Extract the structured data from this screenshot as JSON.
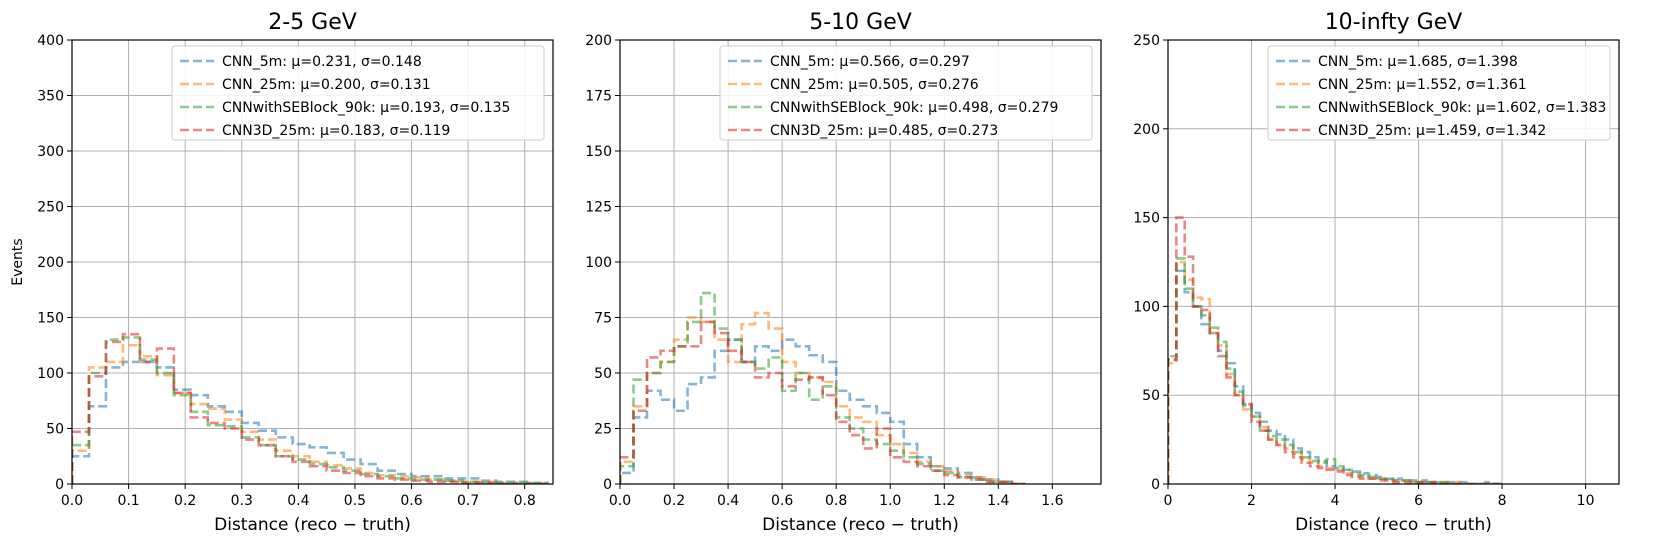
{
  "figure": {
    "ylabel": "Events",
    "xlabel": "Distance (reco − truth)"
  },
  "colors": {
    "CNN_5m": "#1f77b4",
    "CNN_25m": "#ff7f0e",
    "CNNwithSEBlock_90k": "#2ca02c",
    "CNN3D_25m": "#d62728"
  },
  "chart_data": [
    {
      "type": "histogram",
      "title": "2-5 GeV",
      "xlabel": "Distance (reco − truth)",
      "ylabel": "Events",
      "xlim": [
        0,
        0.85
      ],
      "ylim": [
        0,
        400
      ],
      "xticks": [
        0.0,
        0.1,
        0.2,
        0.3,
        0.4,
        0.5,
        0.6,
        0.7,
        0.8
      ],
      "xtick_labels": [
        "0.0",
        "0.1",
        "0.2",
        "0.3",
        "0.4",
        "0.5",
        "0.6",
        "0.7",
        "0.8"
      ],
      "yticks": [
        0,
        50,
        100,
        150,
        200,
        250,
        300,
        350,
        400
      ],
      "ytick_labels": [
        "0",
        "50",
        "100",
        "150",
        "200",
        "250",
        "300",
        "350",
        "400"
      ],
      "grid": true,
      "legend_position": "top-right",
      "bin_edges": [
        0.0,
        0.03,
        0.06,
        0.09,
        0.12,
        0.15,
        0.18,
        0.21,
        0.24,
        0.27,
        0.3,
        0.33,
        0.36,
        0.39,
        0.42,
        0.45,
        0.48,
        0.51,
        0.54,
        0.57,
        0.6,
        0.63,
        0.66,
        0.69,
        0.72,
        0.75,
        0.78,
        0.81,
        0.84
      ],
      "series": [
        {
          "name": "CNN_5m",
          "label": "CNN_5m: μ=0.231, σ=0.148",
          "values": [
            25,
            70,
            105,
            110,
            110,
            105,
            85,
            80,
            70,
            65,
            55,
            48,
            42,
            36,
            33,
            28,
            22,
            18,
            12,
            9,
            7,
            7,
            5,
            5,
            3,
            2,
            2,
            1
          ]
        },
        {
          "name": "CNN_25m",
          "label": "CNN_25m: μ=0.200, σ=0.131",
          "values": [
            30,
            105,
            110,
            125,
            115,
            98,
            82,
            72,
            68,
            58,
            47,
            40,
            30,
            25,
            20,
            17,
            14,
            10,
            8,
            7,
            6,
            4,
            3,
            2,
            2,
            1,
            1,
            0
          ]
        },
        {
          "name": "CNNwithSEBlock_90k",
          "label": "CNNwithSEBlock_90k: μ=0.193, σ=0.135",
          "values": [
            35,
            100,
            130,
            132,
            112,
            100,
            80,
            65,
            53,
            52,
            42,
            35,
            25,
            22,
            18,
            15,
            12,
            9,
            7,
            5,
            4,
            4,
            3,
            2,
            1,
            1,
            1,
            1
          ]
        },
        {
          "name": "CNN3D_25m",
          "label": "CNN3D_25m: μ=0.183, σ=0.119",
          "values": [
            47,
            97,
            128,
            135,
            110,
            122,
            82,
            60,
            55,
            50,
            40,
            35,
            25,
            20,
            16,
            12,
            10,
            7,
            5,
            4,
            3,
            2,
            2,
            1,
            1,
            0,
            0,
            0
          ]
        }
      ]
    },
    {
      "type": "histogram",
      "title": "5-10 GeV",
      "xlabel": "Distance (reco − truth)",
      "ylabel": "",
      "xlim": [
        0,
        1.78
      ],
      "ylim": [
        0,
        200
      ],
      "xticks": [
        0.0,
        0.2,
        0.4,
        0.6,
        0.8,
        1.0,
        1.2,
        1.4,
        1.6
      ],
      "xtick_labels": [
        "0.0",
        "0.2",
        "0.4",
        "0.6",
        "0.8",
        "1.0",
        "1.2",
        "1.4",
        "1.6"
      ],
      "yticks": [
        0,
        25,
        50,
        75,
        100,
        125,
        150,
        175,
        200
      ],
      "ytick_labels": [
        "0",
        "25",
        "50",
        "75",
        "100",
        "125",
        "150",
        "175",
        "200"
      ],
      "grid": true,
      "legend_position": "top-right",
      "bin_edges": [
        0.0,
        0.05,
        0.1,
        0.15,
        0.2,
        0.25,
        0.3,
        0.35,
        0.4,
        0.45,
        0.5,
        0.55,
        0.6,
        0.65,
        0.7,
        0.75,
        0.8,
        0.85,
        0.9,
        0.95,
        1.0,
        1.05,
        1.1,
        1.15,
        1.2,
        1.25,
        1.3,
        1.35,
        1.4,
        1.45,
        1.5
      ],
      "series": [
        {
          "name": "CNN_5m",
          "label": "CNN_5m: μ=0.566, σ=0.297",
          "values": [
            5,
            30,
            42,
            38,
            33,
            45,
            48,
            60,
            65,
            55,
            62,
            60,
            65,
            62,
            58,
            55,
            42,
            38,
            35,
            32,
            28,
            18,
            12,
            8,
            7,
            5,
            3,
            2,
            1,
            0
          ]
        },
        {
          "name": "CNN_25m",
          "label": "CNN_25m: μ=0.505, σ=0.276",
          "values": [
            10,
            35,
            50,
            55,
            65,
            75,
            73,
            65,
            55,
            72,
            77,
            70,
            55,
            50,
            48,
            46,
            35,
            30,
            28,
            22,
            18,
            14,
            10,
            8,
            6,
            4,
            3,
            2,
            1,
            0
          ]
        },
        {
          "name": "CNNwithSEBlock_90k",
          "label": "CNNwithSEBlock_90k: μ=0.498, σ=0.279",
          "values": [
            8,
            47,
            50,
            55,
            62,
            73,
            86,
            70,
            65,
            55,
            52,
            57,
            42,
            50,
            38,
            44,
            30,
            25,
            20,
            18,
            15,
            12,
            9,
            6,
            5,
            3,
            2,
            1,
            1,
            0
          ]
        },
        {
          "name": "CNN3D_25m",
          "label": "CNN3D_25m: μ=0.485, σ=0.273",
          "values": [
            12,
            33,
            57,
            60,
            62,
            62,
            73,
            68,
            60,
            55,
            48,
            50,
            44,
            47,
            48,
            40,
            28,
            22,
            16,
            25,
            12,
            10,
            8,
            6,
            4,
            3,
            2,
            1,
            1,
            0
          ]
        }
      ]
    },
    {
      "type": "histogram",
      "title": "10-infty GeV",
      "xlabel": "Distance (reco − truth)",
      "ylabel": "",
      "xlim": [
        0,
        10.8
      ],
      "ylim": [
        0,
        250
      ],
      "xticks": [
        0,
        2,
        4,
        6,
        8,
        10
      ],
      "xtick_labels": [
        "0",
        "2",
        "4",
        "6",
        "8",
        "10"
      ],
      "yticks": [
        0,
        50,
        100,
        150,
        200,
        250
      ],
      "ytick_labels": [
        "0",
        "50",
        "100",
        "150",
        "200",
        "250"
      ],
      "grid": true,
      "legend_position": "top-right",
      "bin_edges": [
        0.0,
        0.2,
        0.4,
        0.6,
        0.8,
        1.0,
        1.2,
        1.4,
        1.6,
        1.8,
        2.0,
        2.2,
        2.4,
        2.6,
        2.8,
        3.0,
        3.2,
        3.4,
        3.6,
        3.8,
        4.0,
        4.2,
        4.4,
        4.6,
        4.8,
        5.0,
        5.2,
        5.4,
        5.6,
        5.8,
        6.0,
        6.2,
        6.4,
        6.6,
        6.8,
        7.0,
        7.2,
        7.4,
        7.6,
        7.8,
        8.0
      ],
      "series": [
        {
          "name": "CNN_5m",
          "label": "CNN_5m: μ=1.685, σ=1.398",
          "values": [
            70,
            120,
            108,
            100,
            90,
            85,
            75,
            68,
            55,
            45,
            40,
            35,
            30,
            28,
            25,
            20,
            18,
            15,
            13,
            10,
            9,
            8,
            7,
            6,
            5,
            4,
            3,
            3,
            2,
            2,
            2,
            1,
            1,
            1,
            1,
            1,
            0,
            0,
            1,
            0
          ]
        },
        {
          "name": "CNN_25m",
          "label": "CNN_25m: μ=1.552, σ=1.361",
          "values": [
            68,
            125,
            115,
            105,
            104,
            85,
            78,
            62,
            50,
            42,
            38,
            32,
            25,
            22,
            20,
            17,
            14,
            12,
            10,
            9,
            8,
            6,
            5,
            4,
            3,
            3,
            2,
            2,
            2,
            1,
            1,
            1,
            1,
            1,
            1,
            0,
            0,
            0,
            0,
            0
          ]
        },
        {
          "name": "CNNwithSEBlock_90k",
          "label": "CNNwithSEBlock_90k: μ=1.602, σ=1.383",
          "values": [
            72,
            127,
            110,
            100,
            95,
            88,
            80,
            65,
            52,
            44,
            38,
            30,
            27,
            25,
            22,
            18,
            15,
            13,
            12,
            14,
            10,
            8,
            6,
            5,
            4,
            3,
            3,
            2,
            2,
            1,
            1,
            1,
            1,
            1,
            0,
            0,
            0,
            0,
            0,
            0
          ]
        },
        {
          "name": "CNN3D_25m",
          "label": "CNN3D_25m: μ=1.459, σ=1.342",
          "values": [
            70,
            150,
            128,
            100,
            98,
            85,
            72,
            60,
            50,
            45,
            35,
            30,
            25,
            22,
            18,
            15,
            12,
            10,
            9,
            8,
            7,
            5,
            4,
            3,
            3,
            2,
            2,
            1,
            1,
            1,
            1,
            1,
            0,
            0,
            0,
            0,
            0,
            0,
            0,
            0
          ]
        }
      ]
    }
  ]
}
